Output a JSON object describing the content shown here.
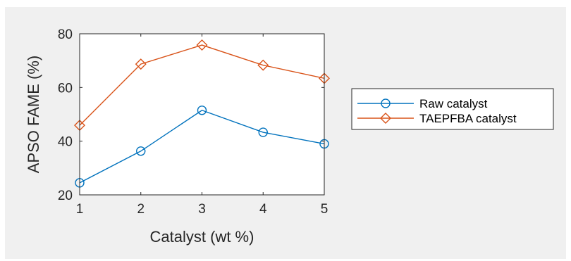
{
  "chart_data": {
    "type": "line",
    "title": "",
    "xlabel": "Catalyst (wt %)",
    "ylabel": "APSO FAME (%)",
    "x": [
      1,
      2,
      3,
      4,
      5
    ],
    "xlim": [
      1,
      5
    ],
    "ylim": [
      20,
      80
    ],
    "xticks": [
      "1",
      "2",
      "3",
      "4",
      "5"
    ],
    "yticks": [
      "20",
      "40",
      "60",
      "80"
    ],
    "grid": false,
    "legend_position": "outside-right",
    "series": [
      {
        "name": "Raw catalyst",
        "values": [
          24.5,
          36.3,
          51.5,
          43.3,
          39.0
        ],
        "color": "#0072BD",
        "marker": "circle"
      },
      {
        "name": "TAEPFBA catalyst",
        "values": [
          45.9,
          68.7,
          75.8,
          68.3,
          63.4
        ],
        "color": "#D95319",
        "marker": "diamond"
      }
    ]
  }
}
